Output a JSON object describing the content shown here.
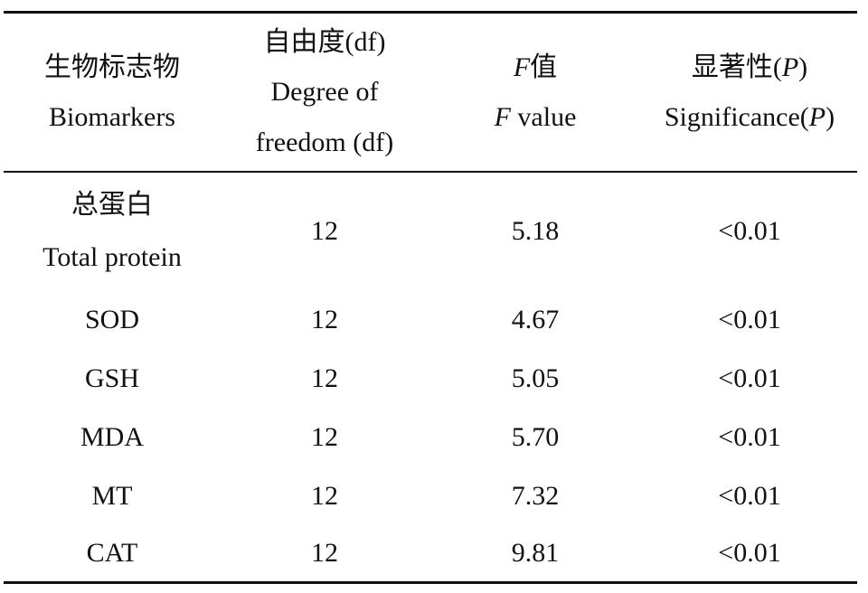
{
  "table": {
    "headers": [
      {
        "lines": [
          "生物标志物",
          "Biomarkers"
        ]
      },
      {
        "lines": [
          "自由度(df)",
          "Degree of",
          "freedom (df)"
        ]
      },
      {
        "f_zh_var": "F",
        "f_zh_text": "值",
        "f_en_var": "F",
        "f_en_text": " value"
      },
      {
        "zh_text": "显著性(",
        "zh_var": "P",
        "zh_close": ")",
        "en_text": "Significance(",
        "en_var": "P",
        "en_close": ")"
      }
    ],
    "rows": [
      {
        "biomarker_zh": "总蛋白",
        "biomarker_en": "Total protein",
        "df": "12",
        "f_value": "5.18",
        "p": "<0.01"
      },
      {
        "biomarker": "SOD",
        "df": "12",
        "f_value": "4.67",
        "p": "<0.01"
      },
      {
        "biomarker": "GSH",
        "df": "12",
        "f_value": "5.05",
        "p": "<0.01"
      },
      {
        "biomarker": "MDA",
        "df": "12",
        "f_value": "5.70",
        "p": "<0.01"
      },
      {
        "biomarker": "MT",
        "df": "12",
        "f_value": "7.32",
        "p": "<0.01"
      },
      {
        "biomarker": "CAT",
        "df": "12",
        "f_value": "9.81",
        "p": "<0.01"
      }
    ]
  }
}
